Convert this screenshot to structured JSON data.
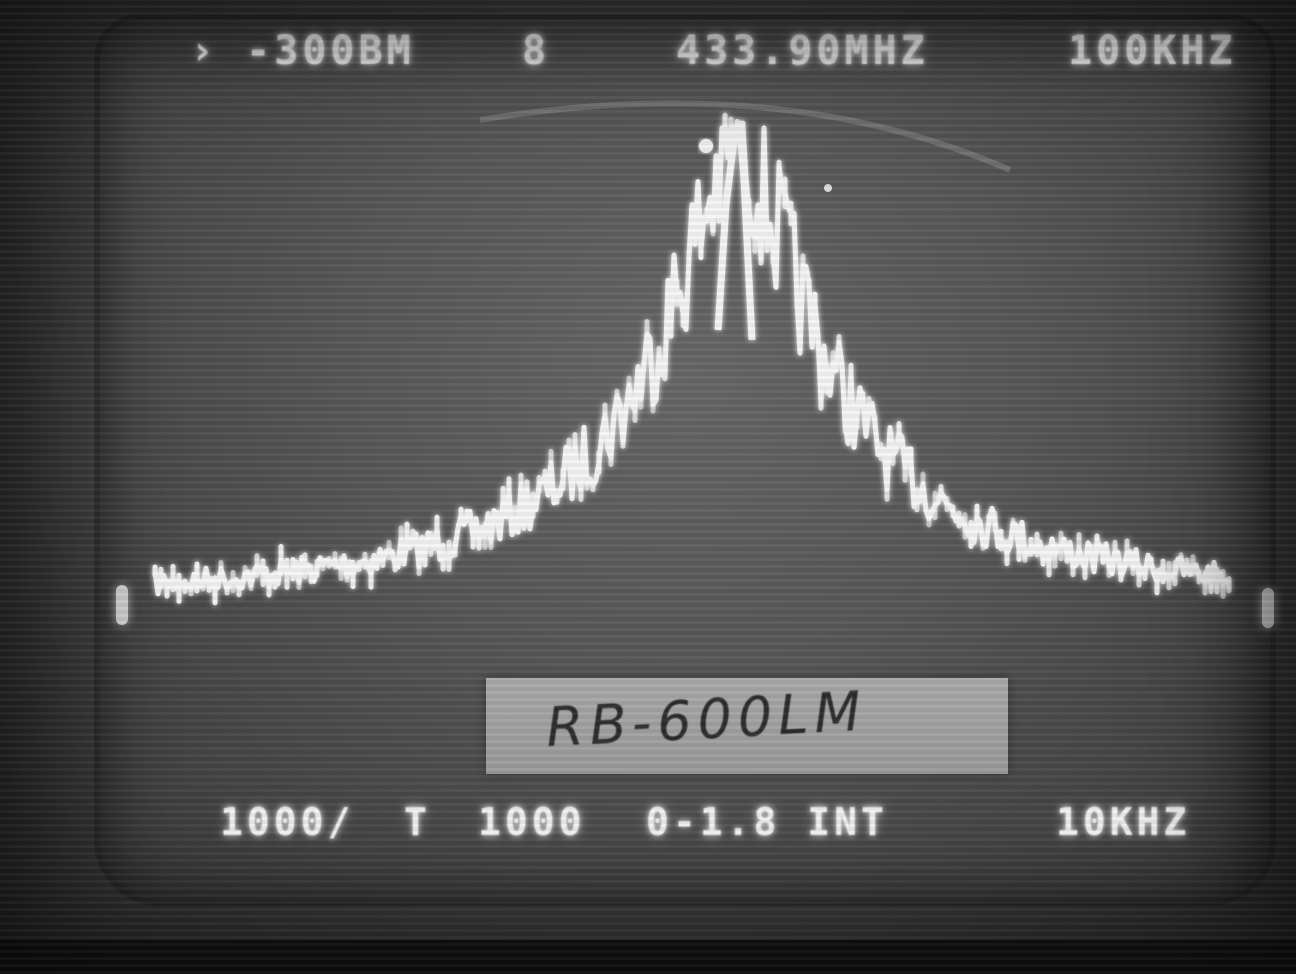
{
  "readouts": {
    "ref_level": "› -300BM",
    "marker_glyph": "8",
    "center_freq": "433.90MHZ",
    "span_width": "100KHZ",
    "scale_div": "1000/",
    "trace_mode": "T",
    "sweep_time": "1000",
    "input_range": "0-1.8 INT",
    "res_bw": "10KHZ"
  },
  "label_card": {
    "text": "RB-600LM"
  },
  "colors": {
    "trace": "#f4f4f4",
    "screen": "#575757",
    "background": "#2a2a2a"
  },
  "trace": {
    "noise_floor_db": -70,
    "peak_db": 0,
    "peak_offset_khz": 0,
    "span_khz": 100
  }
}
